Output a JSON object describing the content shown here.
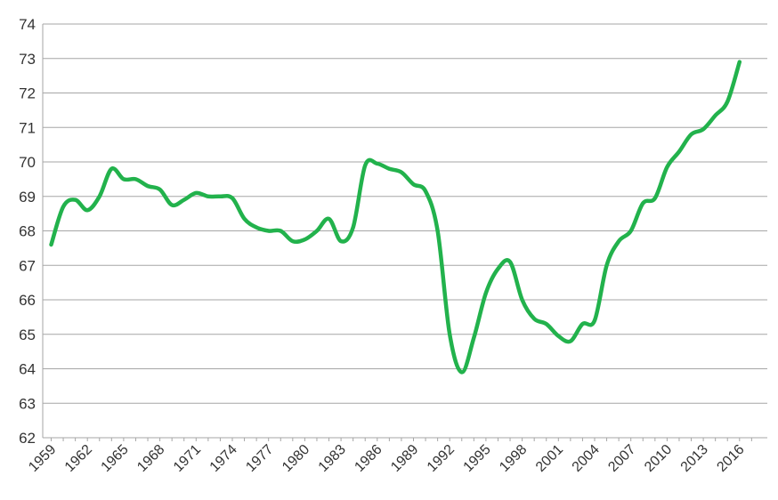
{
  "chart_data": {
    "type": "line",
    "title": "",
    "xlabel": "",
    "ylabel": "",
    "ylim": [
      62,
      74
    ],
    "y_ticks": [
      "62",
      "63",
      "64",
      "65",
      "66",
      "67",
      "68",
      "69",
      "70",
      "71",
      "72",
      "73",
      "74"
    ],
    "x_tick_labels": [
      "1959",
      "1962",
      "1965",
      "1968",
      "1971",
      "1974",
      "1977",
      "1980",
      "1983",
      "1986",
      "1989",
      "1992",
      "1995",
      "1998",
      "2001",
      "2004",
      "2007",
      "2010",
      "2013",
      "2016"
    ],
    "grid": true,
    "legend": "none",
    "line_color": "#22b24c",
    "grid_color": "#a6a6a6",
    "series": [
      {
        "x": [
          1959,
          1960,
          1961,
          1962,
          1963,
          1964,
          1965,
          1966,
          1967,
          1968,
          1969,
          1970,
          1971,
          1972,
          1973,
          1974,
          1975,
          1976,
          1977,
          1978,
          1979,
          1980,
          1981,
          1982,
          1983,
          1984,
          1985,
          1986,
          1987,
          1988,
          1989,
          1990,
          1991,
          1992,
          1993,
          1994,
          1995,
          1996,
          1997,
          1998,
          1999,
          2000,
          2001,
          2002,
          2003,
          2004,
          2005,
          2006,
          2007,
          2008,
          2009,
          2010,
          2011,
          2012,
          2013,
          2014,
          2015,
          2016,
          2017
        ],
        "values": [
          67.6,
          68.7,
          68.9,
          68.6,
          69.0,
          69.8,
          69.5,
          69.5,
          69.3,
          69.2,
          68.75,
          68.9,
          69.1,
          69.0,
          69.0,
          68.95,
          68.35,
          68.1,
          68.0,
          68.0,
          67.7,
          67.75,
          68.0,
          68.35,
          67.7,
          68.1,
          69.9,
          69.95,
          69.8,
          69.7,
          69.35,
          69.15,
          68.0,
          65.0,
          63.9,
          64.9,
          66.2,
          66.9,
          67.1,
          66.0,
          65.45,
          65.3,
          64.95,
          64.8,
          65.3,
          65.4,
          67.0,
          67.7,
          68.0,
          68.8,
          68.95,
          69.85,
          70.3,
          70.8,
          70.95,
          71.35,
          71.75,
          72.9,
          null
        ]
      }
    ]
  }
}
